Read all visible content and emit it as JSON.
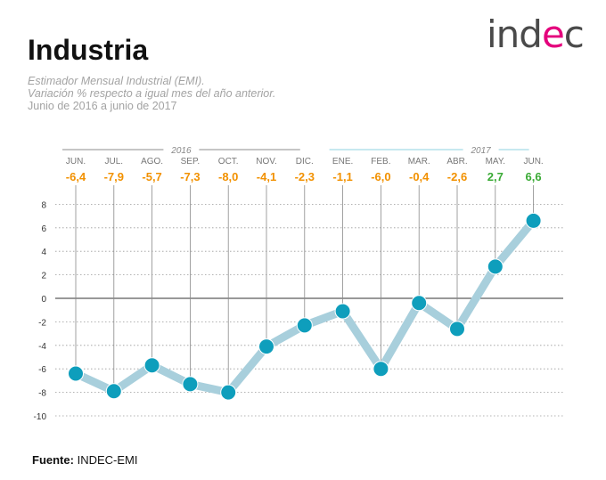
{
  "header": {
    "title": "Industria",
    "subtitle_1": "Estimador Mensual Industrial (EMI).",
    "subtitle_2": "Variación % respecto a igual mes del año anterior.",
    "subtitle_3": "Junio de 2016 a junio de 2017"
  },
  "logo": {
    "text_before": "ind",
    "text_accent": "e",
    "text_after": "c",
    "accent_color": "#e4007c"
  },
  "footer": {
    "source_label": "Fuente:",
    "source_value": "INDEC-EMI"
  },
  "colors": {
    "line": "#a8cfdc",
    "marker": "#0e9ebc",
    "negative_label": "#f29100",
    "positive_label": "#3aaa35",
    "year_2016_rule": "#8c8c8c",
    "year_2017_rule": "#8fd3e0"
  },
  "chart_data": {
    "type": "line",
    "title": "Industria",
    "categories": [
      "JUN.",
      "JUL.",
      "AGO.",
      "SEP.",
      "OCT.",
      "NOV.",
      "DIC.",
      "ENE.",
      "FEB.",
      "MAR.",
      "ABR.",
      "MAY.",
      "JUN."
    ],
    "values": [
      -6.4,
      -7.9,
      -5.7,
      -7.3,
      -8.0,
      -4.1,
      -2.3,
      -1.1,
      -6.0,
      -0.4,
      -2.6,
      2.7,
      6.6
    ],
    "value_labels": [
      "-6,4",
      "-7,9",
      "-5,7",
      "-7,3",
      "-8,0",
      "-4,1",
      "-2,3",
      "-1,1",
      "-6,0",
      "-0,4",
      "-2,6",
      "2,7",
      "6,6"
    ],
    "year_groups": [
      {
        "label": "2016",
        "from": 0,
        "to": 6
      },
      {
        "label": "2017",
        "from": 7,
        "to": 12
      }
    ],
    "yticks": [
      "8",
      "6",
      "4",
      "2",
      "0",
      "-2",
      "-4",
      "-6",
      "-8",
      "-10"
    ],
    "ylim": [
      -10,
      8
    ],
    "xlabel": "",
    "ylabel": ""
  }
}
